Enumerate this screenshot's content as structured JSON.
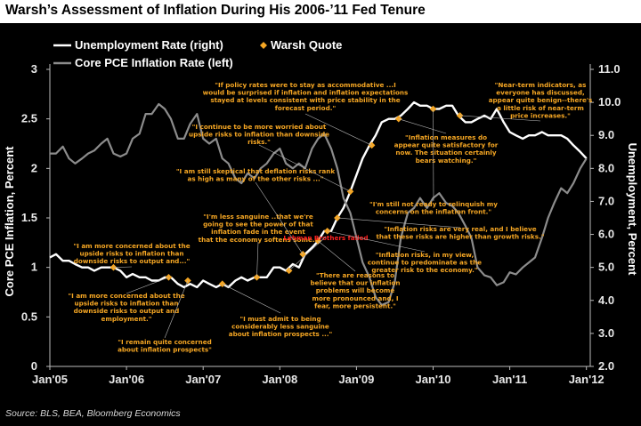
{
  "header": {
    "title": "Warsh’s Assessment of Inflation During His 2006-’11 Fed Tenure"
  },
  "source": "Source: BLS, BEA, Bloomberg Economics",
  "colors": {
    "background": "#000000",
    "unemployment_line": "#ffffff",
    "pce_line": "#8c8c8c",
    "quote_marker": "#f5a623",
    "annotation_text": "#f5a623",
    "highlight_text": "#ff2020"
  },
  "chart_data": {
    "type": "line",
    "legend": [
      {
        "label": "Unemployment Rate (right)",
        "style": "line",
        "color": "#ffffff"
      },
      {
        "label": "Warsh Quote",
        "style": "marker",
        "color": "#f5a623"
      },
      {
        "label": "Core PCE Inflation Rate (left)",
        "style": "line",
        "color": "#8c8c8c"
      }
    ],
    "x_ticks": [
      "Jan'05",
      "Jan'06",
      "Jan'07",
      "Jan'08",
      "Jan'09",
      "Jan'10",
      "Jan'11",
      "Jan'12"
    ],
    "x_range": [
      2005.0,
      2012.05
    ],
    "y_left": {
      "label": "Core PCE Inflation, Percent",
      "range": [
        0,
        3
      ],
      "ticks": [
        "0",
        "0.5",
        "1",
        "1.5",
        "2",
        "2.5",
        "3"
      ]
    },
    "y_right": {
      "label": "Unemployment, Percent",
      "range": [
        2.0,
        11.0
      ],
      "ticks": [
        "2.0",
        "3.0",
        "4.0",
        "5.0",
        "6.0",
        "7.0",
        "8.0",
        "9.0",
        "10.0",
        "11.0"
      ]
    },
    "series": [
      {
        "name": "Unemployment Rate (right)",
        "axis": "right",
        "x": [
          2005.0,
          2005.08,
          2005.17,
          2005.25,
          2005.33,
          2005.42,
          2005.5,
          2005.58,
          2005.67,
          2005.75,
          2005.83,
          2005.92,
          2006.0,
          2006.08,
          2006.17,
          2006.25,
          2006.33,
          2006.42,
          2006.5,
          2006.58,
          2006.67,
          2006.75,
          2006.83,
          2006.92,
          2007.0,
          2007.08,
          2007.17,
          2007.25,
          2007.33,
          2007.42,
          2007.5,
          2007.58,
          2007.67,
          2007.75,
          2007.83,
          2007.92,
          2008.0,
          2008.08,
          2008.17,
          2008.25,
          2008.33,
          2008.42,
          2008.5,
          2008.58,
          2008.67,
          2008.75,
          2008.83,
          2008.92,
          2009.0,
          2009.08,
          2009.17,
          2009.25,
          2009.33,
          2009.42,
          2009.5,
          2009.58,
          2009.67,
          2009.75,
          2009.83,
          2009.92,
          2010.0,
          2010.08,
          2010.17,
          2010.25,
          2010.33,
          2010.42,
          2010.5,
          2010.58,
          2010.67,
          2010.75,
          2010.83,
          2010.92,
          2011.0,
          2011.08,
          2011.17,
          2011.25,
          2011.33,
          2011.42,
          2011.5,
          2011.58,
          2011.67,
          2011.75,
          2011.83,
          2011.92,
          2012.0
        ],
        "values": [
          5.3,
          5.4,
          5.2,
          5.2,
          5.1,
          5.0,
          5.0,
          4.9,
          5.0,
          5.0,
          5.0,
          4.9,
          4.7,
          4.8,
          4.7,
          4.7,
          4.6,
          4.6,
          4.7,
          4.7,
          4.5,
          4.4,
          4.5,
          4.4,
          4.6,
          4.5,
          4.4,
          4.5,
          4.4,
          4.6,
          4.7,
          4.6,
          4.7,
          4.7,
          4.7,
          5.0,
          5.0,
          4.9,
          5.1,
          5.0,
          5.4,
          5.6,
          5.8,
          6.1,
          6.1,
          6.5,
          6.8,
          7.3,
          7.8,
          8.3,
          8.7,
          9.0,
          9.4,
          9.5,
          9.5,
          9.6,
          9.8,
          10.0,
          9.9,
          9.9,
          9.8,
          9.8,
          9.9,
          9.9,
          9.6,
          9.4,
          9.4,
          9.5,
          9.6,
          9.5,
          9.8,
          9.4,
          9.1,
          9.0,
          8.9,
          9.0,
          9.0,
          9.1,
          9.0,
          9.0,
          9.0,
          8.9,
          8.7,
          8.5,
          8.3
        ]
      },
      {
        "name": "Core PCE Inflation Rate (left)",
        "axis": "left",
        "x": [
          2005.0,
          2005.08,
          2005.17,
          2005.25,
          2005.33,
          2005.42,
          2005.5,
          2005.58,
          2005.67,
          2005.75,
          2005.83,
          2005.92,
          2006.0,
          2006.08,
          2006.17,
          2006.25,
          2006.33,
          2006.42,
          2006.5,
          2006.58,
          2006.67,
          2006.75,
          2006.83,
          2006.92,
          2007.0,
          2007.08,
          2007.17,
          2007.25,
          2007.33,
          2007.42,
          2007.5,
          2007.58,
          2007.67,
          2007.75,
          2007.83,
          2007.92,
          2008.0,
          2008.08,
          2008.17,
          2008.25,
          2008.33,
          2008.42,
          2008.5,
          2008.58,
          2008.67,
          2008.75,
          2008.83,
          2008.92,
          2009.0,
          2009.08,
          2009.17,
          2009.25,
          2009.33,
          2009.42,
          2009.5,
          2009.58,
          2009.67,
          2009.75,
          2009.83,
          2009.92,
          2010.0,
          2010.08,
          2010.17,
          2010.25,
          2010.33,
          2010.42,
          2010.5,
          2010.58,
          2010.67,
          2010.75,
          2010.83,
          2010.92,
          2011.0,
          2011.08,
          2011.17,
          2011.25,
          2011.33,
          2011.42,
          2011.5,
          2011.58,
          2011.67,
          2011.75,
          2011.83,
          2011.92,
          2012.0
        ],
        "values": [
          2.15,
          2.15,
          2.22,
          2.1,
          2.05,
          2.1,
          2.15,
          2.18,
          2.25,
          2.3,
          2.15,
          2.12,
          2.15,
          2.3,
          2.35,
          2.55,
          2.55,
          2.65,
          2.6,
          2.5,
          2.3,
          2.3,
          2.45,
          2.55,
          2.3,
          2.25,
          2.3,
          2.1,
          2.05,
          1.9,
          1.85,
          1.95,
          1.9,
          2.0,
          2.05,
          2.15,
          2.2,
          2.05,
          2.0,
          2.05,
          2.0,
          2.2,
          2.3,
          2.35,
          2.2,
          2.0,
          1.7,
          1.55,
          1.3,
          1.05,
          0.9,
          0.7,
          0.62,
          0.65,
          0.85,
          1.3,
          1.55,
          1.6,
          1.7,
          1.6,
          1.7,
          1.75,
          1.65,
          1.62,
          1.55,
          1.42,
          1.3,
          1.0,
          0.92,
          0.9,
          0.82,
          0.85,
          0.95,
          0.93,
          1.0,
          1.05,
          1.1,
          1.3,
          1.5,
          1.65,
          1.8,
          1.75,
          1.85,
          2.0,
          2.1
        ]
      }
    ],
    "quote_points": [
      {
        "x": 2005.83,
        "y_right": 5.0
      },
      {
        "x": 2006.55,
        "y_right": 4.7
      },
      {
        "x": 2006.8,
        "y_right": 4.6
      },
      {
        "x": 2007.25,
        "y_right": 4.5
      },
      {
        "x": 2007.7,
        "y_right": 4.7
      },
      {
        "x": 2008.12,
        "y_right": 4.9
      },
      {
        "x": 2008.3,
        "y_right": 5.4
      },
      {
        "x": 2008.5,
        "y_right": 5.8
      },
      {
        "x": 2008.62,
        "y_right": 6.1
      },
      {
        "x": 2008.75,
        "y_right": 6.5
      },
      {
        "x": 2008.92,
        "y_right": 7.3
      },
      {
        "x": 2009.2,
        "y_right": 8.7
      },
      {
        "x": 2009.55,
        "y_right": 9.5
      },
      {
        "x": 2010.0,
        "y_right": 9.8
      },
      {
        "x": 2010.35,
        "y_right": 9.6
      }
    ],
    "annotations": [
      {
        "lines": [
          "\"If policy rates were to stay as accommodative ...I",
          "would be surprised if inflation and inflation expectations",
          "stayed at levels consistent with price stability in the",
          "forecast period.\""
        ],
        "color": "#f5a623"
      },
      {
        "lines": [
          "\"Near-term indicators, as",
          "everyone has discussed,",
          "appear quite benign--there's",
          "a little risk of near-term",
          "price increases.\""
        ],
        "color": "#f5a623"
      },
      {
        "lines": [
          "\"I continue to be more worried about",
          "upside risks to inflation than downside",
          "risks.\""
        ],
        "color": "#f5a623"
      },
      {
        "lines": [
          "\"Inflation measures do",
          "appear quite satisfactory for",
          "now. The situation certainly",
          "bears watching.\""
        ],
        "color": "#f5a623"
      },
      {
        "lines": [
          "\"I am still skeptical that deflation risks rank",
          "as high as many of the other risks ...\""
        ],
        "color": "#f5a623"
      },
      {
        "lines": [
          "\"I'm still not ready to relinquish my",
          "concerns on the inflation front.\""
        ],
        "color": "#f5a623"
      },
      {
        "lines": [
          "\"I'm less sanguine ..that we're",
          "going to see the power of that",
          "inflation fade in the event",
          "that the economy softens some.\""
        ],
        "color": "#f5a623"
      },
      {
        "lines": [
          "Lehman Brothers failed"
        ],
        "color": "#ff2020"
      },
      {
        "lines": [
          "\"Inflation risks are very real, and I believe",
          "that these risks are higher than growth risks.\""
        ],
        "color": "#f5a623"
      },
      {
        "lines": [
          "\"I am more concerned about the",
          "upside risks to inflation than",
          "downside risks to output and...\""
        ],
        "color": "#f5a623"
      },
      {
        "lines": [
          "\"Inflation risks, in my view,",
          "continue to predominate as the",
          "greater risk to the economy.\""
        ],
        "color": "#f5a623"
      },
      {
        "lines": [
          "\"There are reasons to",
          "believe that our inflation",
          "problems will become",
          "more pronounced and, I",
          "fear, more persistent.\""
        ],
        "color": "#f5a623"
      },
      {
        "lines": [
          "\"I am more concerned about the",
          "upside risks to inflation than",
          "downside risks to output and",
          "employment.\""
        ],
        "color": "#f5a623"
      },
      {
        "lines": [
          "\"I must admit to being",
          "considerably less sanguine",
          "about inflation prospects ...\""
        ],
        "color": "#f5a623"
      },
      {
        "lines": [
          "\"I remain quite concerned",
          "about inflation prospects\""
        ],
        "color": "#f5a623"
      }
    ]
  }
}
